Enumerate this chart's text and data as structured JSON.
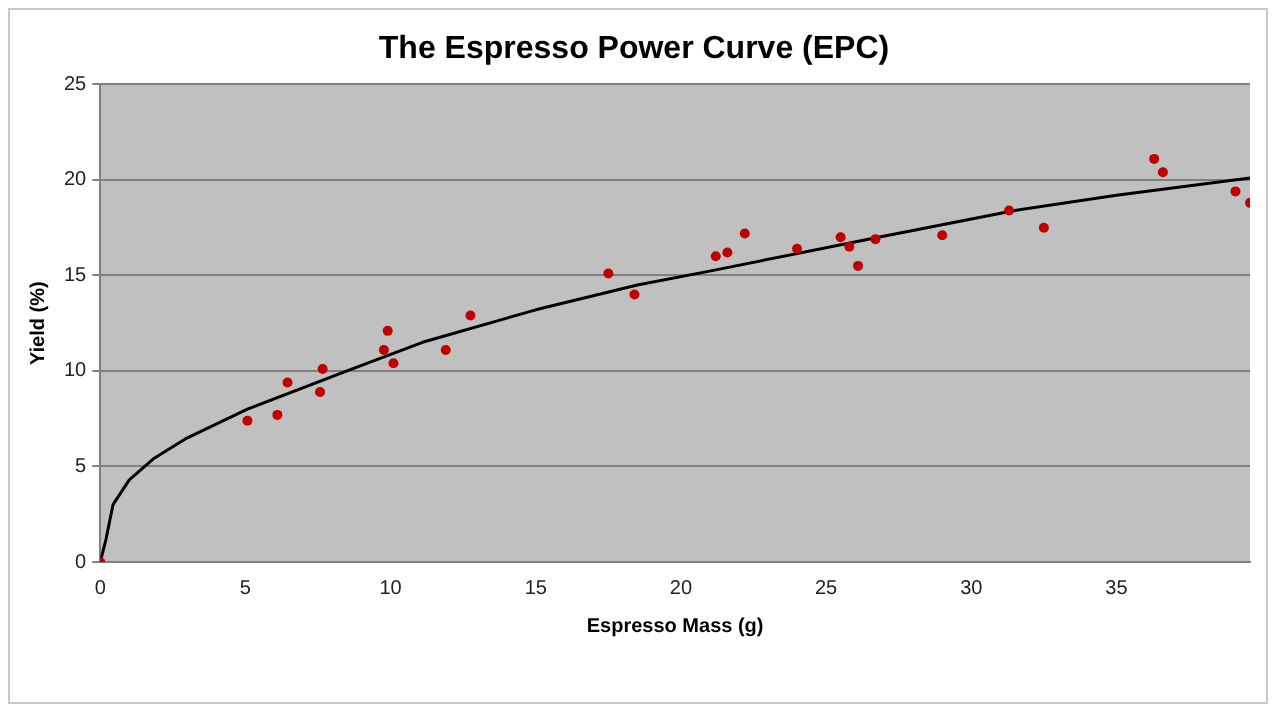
{
  "chart_data": {
    "type": "scatter",
    "title": "The Espresso Power Curve (EPC)",
    "xlabel": "Espresso Mass (g)",
    "ylabel": "Yield (%)",
    "series": [
      {
        "color": "#c00000",
        "marker": "circle",
        "x": [
          0,
          5.07,
          6.1,
          6.45,
          7.57,
          7.66,
          9.9,
          9.77,
          10.1,
          11.9,
          12.75,
          17.5,
          18.4,
          21.2,
          21.6,
          22.2,
          24.0,
          25.5,
          25.8,
          26.1,
          26.7,
          29.0,
          31.3,
          32.5,
          36.3,
          36.6,
          39.1,
          39.6
        ],
        "values": [
          0,
          7.4,
          7.7,
          9.4,
          8.9,
          10.1,
          12.1,
          11.1,
          10.4,
          11.1,
          12.9,
          15.1,
          14.0,
          16.0,
          16.2,
          17.2,
          16.4,
          17.0,
          16.5,
          15.5,
          16.9,
          17.1,
          18.4,
          17.5,
          21.1,
          20.4,
          19.4,
          18.8
        ]
      },
      {
        "type": "line",
        "color": "#000000",
        "marker": "none",
        "line_style": "solid",
        "x": [
          0,
          0.2,
          0.44,
          1,
          1.83,
          3,
          5.07,
          8.5,
          11.1,
          15,
          18.5,
          20.9,
          26.8,
          31.5,
          35,
          39.6
        ],
        "values": [
          0,
          1.2,
          3.0,
          4.3,
          5.4,
          6.5,
          8.0,
          10.0,
          11.5,
          13.2,
          14.5,
          15.2,
          17.0,
          18.4,
          19.2,
          20.1
        ]
      }
    ],
    "xlim": [
      0,
      39.6
    ],
    "xticks": [
      0,
      5,
      10,
      15,
      20,
      25,
      30,
      35
    ],
    "ylim": [
      0,
      25
    ],
    "yticks": [
      0,
      5,
      10,
      15,
      20,
      25
    ],
    "grid": "y",
    "legend": false
  }
}
